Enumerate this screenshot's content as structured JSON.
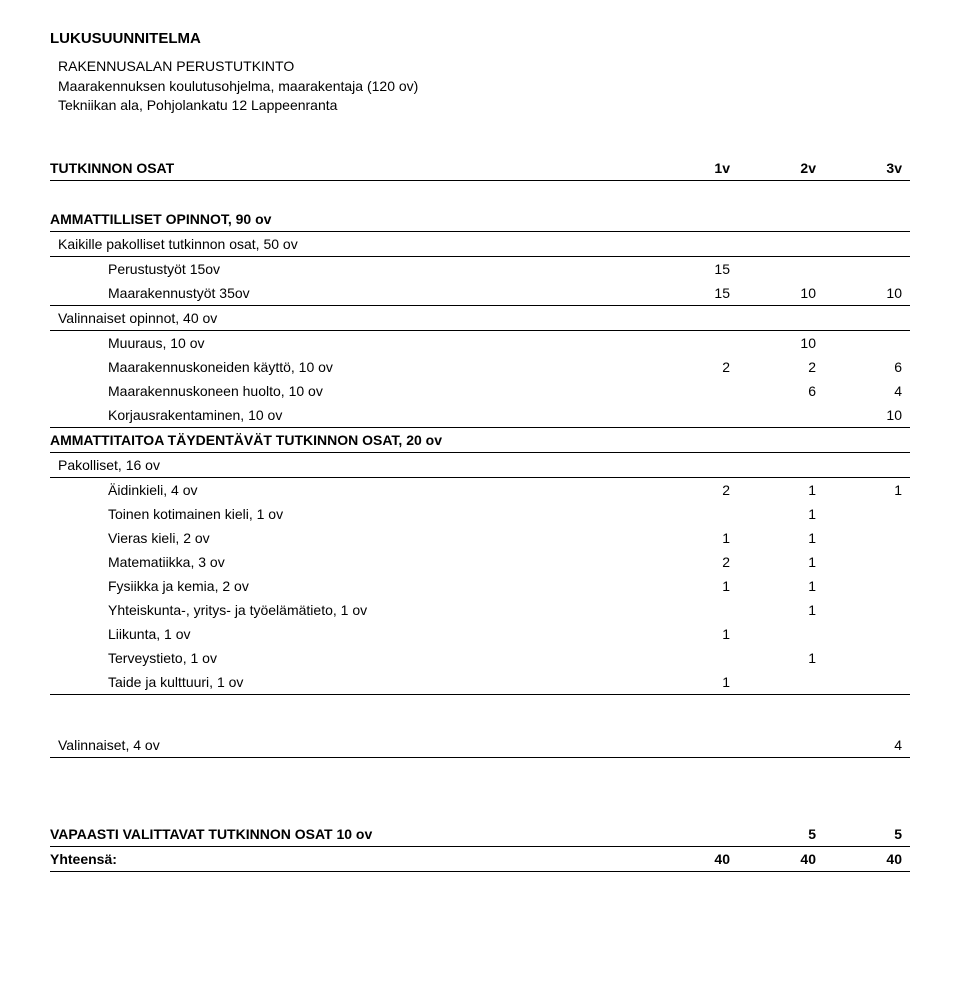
{
  "header": {
    "title": "LUKUSUUNNITELMA",
    "line1": "RAKENNUSALAN PERUSTUTKINTO",
    "line2": "Maarakennuksen koulutusohjelma, maarakentaja (120 ov)",
    "line3": "Tekniikan ala, Pohjolankatu 12 Lappeenranta"
  },
  "cols": {
    "c1": "1v",
    "c2": "2v",
    "c3": "3v"
  },
  "main_header": "TUTKINNON OSAT",
  "amm": {
    "label": "AMMATTILLISET OPINNOT, 90 ov",
    "pakolliset_label": "Kaikille pakolliset tutkinnon osat, 50 ov",
    "rows": [
      {
        "label": "Perustustyöt 15ov",
        "v": [
          "15",
          "",
          ""
        ]
      },
      {
        "label": "Maarakennustyöt 35ov",
        "v": [
          "15",
          "10",
          "10"
        ]
      }
    ],
    "valinnaiset_label": "Valinnaiset opinnot, 40 ov",
    "vrows": [
      {
        "label": "Muuraus, 10 ov",
        "v": [
          "",
          "10",
          ""
        ]
      },
      {
        "label": "Maarakennuskoneiden käyttö, 10 ov",
        "v": [
          "2",
          "2",
          "6"
        ]
      },
      {
        "label": "Maarakennuskoneen huolto, 10 ov",
        "v": [
          "",
          "6",
          "4"
        ]
      },
      {
        "label": "Korjausrakentaminen, 10 ov",
        "v": [
          "",
          "",
          "10"
        ]
      }
    ]
  },
  "tayd": {
    "label": "AMMATTITAITOA TÄYDENTÄVÄT TUTKINNON OSAT, 20 ov",
    "pakolliset_label": "Pakolliset, 16 ov",
    "rows": [
      {
        "label": "Äidinkieli, 4 ov",
        "v": [
          "2",
          "1",
          "1"
        ]
      },
      {
        "label": "Toinen kotimainen kieli, 1 ov",
        "v": [
          "",
          "1",
          ""
        ]
      },
      {
        "label": "Vieras kieli, 2 ov",
        "v": [
          "1",
          "1",
          ""
        ]
      },
      {
        "label": "Matematiikka, 3 ov",
        "v": [
          "2",
          "1",
          ""
        ]
      },
      {
        "label": "Fysiikka ja kemia, 2 ov",
        "v": [
          "1",
          "1",
          ""
        ]
      },
      {
        "label": "Yhteiskunta-, yritys- ja työelämätieto, 1 ov",
        "v": [
          "",
          "1",
          ""
        ]
      },
      {
        "label": "Liikunta, 1 ov",
        "v": [
          "1",
          "",
          ""
        ]
      },
      {
        "label": "Terveystieto, 1 ov",
        "v": [
          "",
          "1",
          ""
        ]
      },
      {
        "label": "Taide ja kulttuuri, 1 ov",
        "v": [
          "1",
          "",
          ""
        ]
      }
    ],
    "valinnaiset": {
      "label": "Valinnaiset, 4 ov",
      "v": [
        "",
        "",
        "4"
      ]
    }
  },
  "vapaa": {
    "label": "VAPAASTI VALITTAVAT TUTKINNON OSAT 10 ov",
    "v": [
      "",
      "5",
      "5"
    ]
  },
  "yht": {
    "label": "Yhteensä:",
    "v": [
      "40",
      "40",
      "40"
    ]
  }
}
